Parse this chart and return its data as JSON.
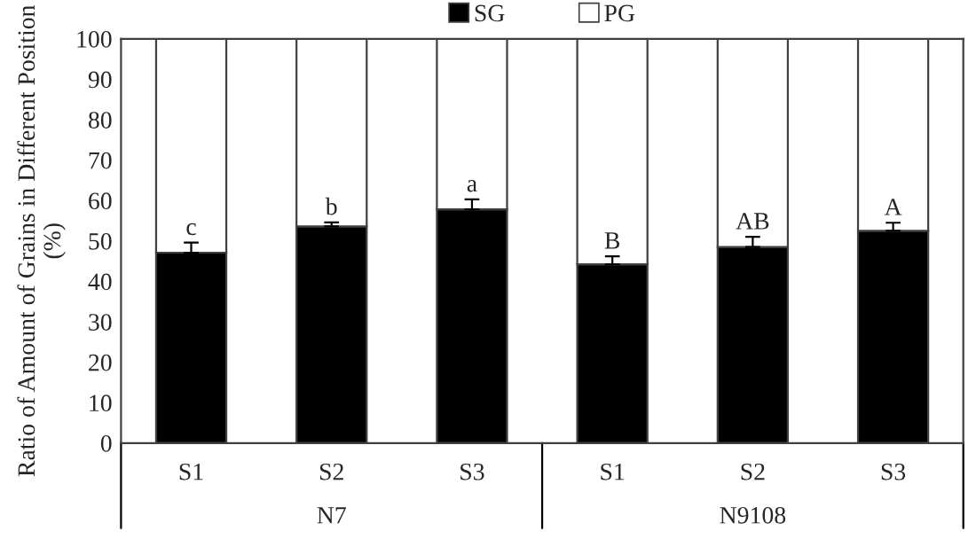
{
  "chart_data": {
    "type": "bar",
    "stacked": true,
    "ylabel": "Ratio of Amount of Grains in Different Position (%)",
    "categories": [
      "S1",
      "S2",
      "S3",
      "S1",
      "S2",
      "S3"
    ],
    "series": [
      {
        "name": "SG",
        "color": "#000000",
        "values": [
          47.1,
          53.6,
          57.8,
          44.2,
          48.5,
          52.5
        ],
        "errors": [
          2.5,
          1,
          2.5,
          2,
          2.5,
          2
        ],
        "value_labels": [
          "c",
          "b",
          "a",
          "B",
          "AB",
          "A"
        ]
      },
      {
        "name": "PG",
        "color": "#ffffff",
        "values": [
          52.9,
          46.4,
          42.2,
          55.8,
          51.5,
          47.5
        ]
      }
    ],
    "annotations": [
      "N7",
      "N9108"
    ],
    "ylim": [
      0,
      100
    ],
    "yticks": [
      0,
      10,
      20,
      30,
      40,
      50,
      60,
      70,
      80,
      90,
      100
    ],
    "grid": false,
    "legend": "top"
  }
}
